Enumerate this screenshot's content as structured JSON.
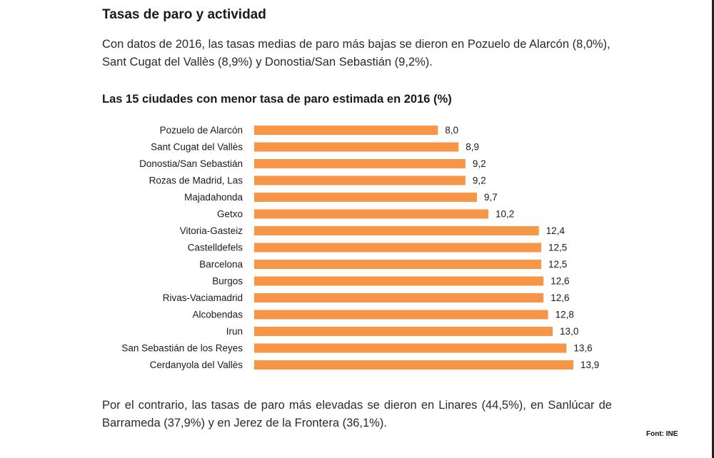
{
  "section_title": "Tasas de paro y actividad",
  "intro_text": "Con datos de 2016, las tasas medias de paro más bajas se dieron en Pozuelo de Alarcón (8,0%), Sant Cugat del Vallès (8,9%) y Donostia/San Sebastián (9,2%).",
  "outro_text": "Por el contrario, las tasas de paro más elevadas se dieron en Linares (44,5%), en Sanlúcar de Barrameda (37,9%) y en Jerez de la Frontera (36,1%).",
  "source": "Font: INE",
  "chart_data": {
    "type": "bar",
    "orientation": "horizontal",
    "title": "Las 15 ciudades con menor tasa de paro estimada en 2016 (%)",
    "categories": [
      "Pozuelo de Alarcón",
      "Sant Cugat del Vallès",
      "Donostia/San Sebastián",
      "Rozas de Madrid, Las",
      "Majadahonda",
      "Getxo",
      "Vitoria-Gasteiz",
      "Castelldefels",
      "Barcelona",
      "Burgos",
      "Rivas-Vaciamadrid",
      "Alcobendas",
      "Irun",
      "San Sebastián de los Reyes",
      "Cerdanyola del Vallès"
    ],
    "values": [
      8.0,
      8.9,
      9.2,
      9.2,
      9.7,
      10.2,
      12.4,
      12.5,
      12.5,
      12.6,
      12.6,
      12.8,
      13.0,
      13.6,
      13.9
    ],
    "value_labels": [
      "8,0",
      "8,9",
      "9,2",
      "9,2",
      "9,7",
      "10,2",
      "12,4",
      "12,5",
      "12,5",
      "12,6",
      "12,6",
      "12,8",
      "13,0",
      "13,6",
      "13,9"
    ],
    "xlim": [
      0,
      13.9
    ],
    "grid": false,
    "legend": "none",
    "bar_color": "#F79646"
  }
}
